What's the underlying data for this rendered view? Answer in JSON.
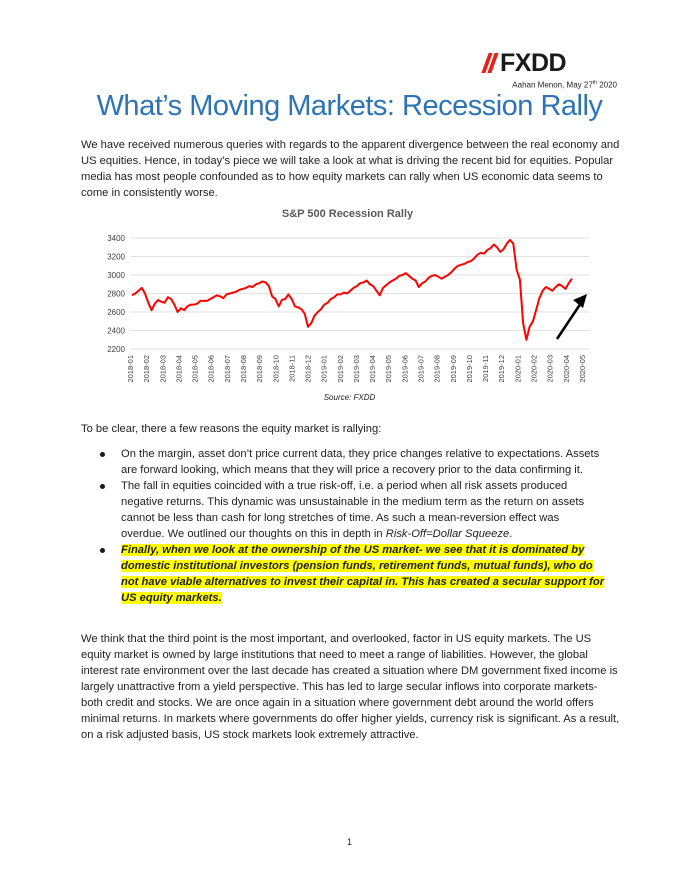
{
  "header": {
    "logo_text": "FXDD",
    "author": "Aahan Menon, May 27",
    "author_sup": "th",
    "author_year": " 2020"
  },
  "title": "What’s Moving Markets: Recession Rally",
  "intro": "We have received numerous queries with regards to the apparent divergence between the real economy and US equities. Hence, in today’s piece we will take a look at what is driving the recent bid for equities. Popular media has most people confounded as to how equity markets can rally when US economic data seems to come in consistently worse.",
  "chart_data": {
    "type": "line",
    "title": "S&P 500 Recession Rally",
    "source": "Source: FXDD",
    "ylim": [
      2200,
      3400
    ],
    "yticks": [
      "2200",
      "2400",
      "2600",
      "2800",
      "3000",
      "3200",
      "3400"
    ],
    "xticks": [
      "2018-01",
      "2018-02",
      "2018-03",
      "2018-04",
      "2018-05",
      "2018-06",
      "2018-07",
      "2018-08",
      "2018-09",
      "2018-10",
      "2018-11",
      "2018-12",
      "2019-01",
      "2019-02",
      "2019-03",
      "2019-04",
      "2019-05",
      "2019-06",
      "2019-07",
      "2019-08",
      "2019-09",
      "2019-10",
      "2019-11",
      "2019-12",
      "2020-01",
      "2020-02",
      "2020-03",
      "2020-04",
      "2020-05"
    ],
    "grid": true,
    "line_color": "#ff0000",
    "arrow_color": "#000000",
    "series": [
      {
        "values": [
          2780,
          2800,
          2830,
          2860,
          2800,
          2700,
          2620,
          2690,
          2730,
          2710,
          2700,
          2760,
          2740,
          2680,
          2600,
          2640,
          2620,
          2660,
          2680,
          2680,
          2690,
          2720,
          2720,
          2720,
          2740,
          2760,
          2780,
          2770,
          2750,
          2790,
          2800,
          2810,
          2820,
          2840,
          2850,
          2860,
          2880,
          2870,
          2900,
          2910,
          2930,
          2920,
          2880,
          2770,
          2740,
          2660,
          2730,
          2740,
          2790,
          2740,
          2660,
          2650,
          2630,
          2580,
          2440,
          2480,
          2560,
          2600,
          2630,
          2680,
          2700,
          2740,
          2760,
          2790,
          2790,
          2810,
          2800,
          2830,
          2860,
          2880,
          2910,
          2920,
          2940,
          2900,
          2880,
          2830,
          2780,
          2860,
          2890,
          2920,
          2940,
          2960,
          2990,
          3000,
          3020,
          2990,
          2960,
          2940,
          2870,
          2910,
          2930,
          2970,
          2990,
          3000,
          2980,
          2960,
          2980,
          3000,
          3030,
          3070,
          3100,
          3110,
          3120,
          3140,
          3150,
          3180,
          3220,
          3240,
          3230,
          3270,
          3290,
          3330,
          3300,
          3250,
          3280,
          3340,
          3380,
          3340,
          3060,
          2950,
          2480,
          2300,
          2440,
          2500,
          2620,
          2750,
          2830,
          2870,
          2850,
          2830,
          2870,
          2900,
          2880,
          2850,
          2910,
          2960
        ]
      }
    ]
  },
  "lead_in": "To be clear, there a few reasons the equity market is rallying:",
  "bullets": [
    {
      "text": "On the margin, asset don’t price current data, they price changes relative to expectations. Assets are forward looking, which means that they will price a recovery prior to the data confirming it."
    },
    {
      "text": "The fall in equities coincided with a true risk-off, i.e. a period when all risk assets produced negative returns. This dynamic was unsustainable in the medium term as the return on assets cannot be less than cash for long stretches of time. As such a mean-reversion effect was overdue. We outlined our thoughts on this in depth in ",
      "emph": "Risk-Off=Dollar Squeeze",
      "tail": "."
    },
    {
      "text": "Finally, when we look at the ownership of the US market- we see that it is dominated by domestic institutional investors (pension funds, retirement funds, mutual funds), who do not have viable alternatives to invest their capital in. This has created a secular support for US equity markets."
    }
  ],
  "closing": "We think that the third point is the most important, and overlooked, factor in US equity markets. The US equity market is owned by large institutions that need to meet a range of liabilities. However, the global interest rate environment over the last decade has created a situation where DM government fixed income is largely unattractive from a yield perspective. This has led to large secular inflows into corporate markets- both credit and stocks. We are once again in a situation where government debt around the world offers minimal returns. In markets where governments do offer higher yields, currency risk is significant. As a result, on a risk adjusted basis, US stock markets look extremely attractive.",
  "page_number": "1"
}
